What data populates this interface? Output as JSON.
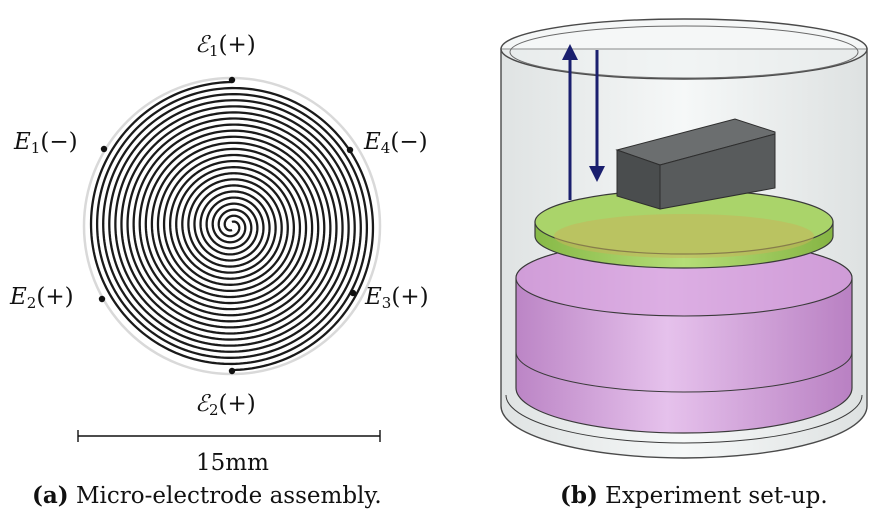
{
  "panel_a": {
    "terminals": [
      {
        "letter": "ℰ",
        "sub": "1",
        "sign": "(+)"
      },
      {
        "letter": "E",
        "sub": "1",
        "sign": "(−)"
      },
      {
        "letter": "E",
        "sub": "4",
        "sign": "(−)"
      },
      {
        "letter": "E",
        "sub": "2",
        "sign": "(+)"
      },
      {
        "letter": "E",
        "sub": "3",
        "sign": "(+)"
      },
      {
        "letter": "ℰ",
        "sub": "2",
        "sign": "(+)"
      }
    ],
    "scale_label": "15mm",
    "caption_tag": "(a)",
    "caption_text": "Micro-electrode assembly."
  },
  "panel_b": {
    "caption_tag": "(b)",
    "caption_text": "Experiment set-up.",
    "colors": {
      "container": "#cfd6d6",
      "fluid": "#c98fd2",
      "electrode_plate": "#9fcf5a",
      "actuator_block": "#56595a",
      "arrow": "#1a1f6e"
    }
  }
}
